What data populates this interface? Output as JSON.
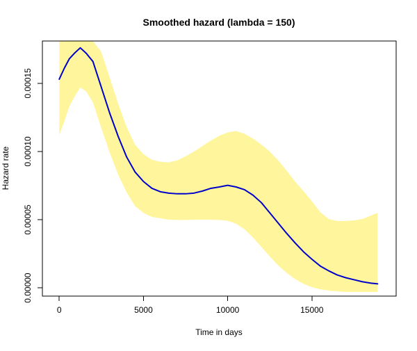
{
  "chart_data": {
    "type": "line",
    "title": "Smoothed hazard (lambda = 150)",
    "xlabel": "Time in days",
    "ylabel": "Hazard rate",
    "xlim": [
      -1000,
      20000
    ],
    "ylim": [
      -6e-06,
      0.000181
    ],
    "x_ticks": [
      0,
      5000,
      10000,
      15000
    ],
    "x_tick_labels": [
      "0",
      "5000",
      "10000",
      "15000"
    ],
    "y_ticks": [
      0,
      5e-05,
      0.0001,
      0.00015
    ],
    "y_tick_labels": [
      "0.00000",
      "0.00005",
      "0.00010",
      "0.00015"
    ],
    "grid": false,
    "legend": "none",
    "colors": {
      "line": "#0000cc",
      "band": "#fff59d",
      "axes": "#000000",
      "background": "#ffffff"
    },
    "series": [
      {
        "x": [
          0,
          300,
          600,
          900,
          1250,
          1600,
          2000,
          2500,
          3000,
          3500,
          4000,
          4500,
          5000,
          5500,
          6000,
          6500,
          7000,
          7500,
          8000,
          8500,
          9000,
          9500,
          10000,
          10500,
          11000,
          11500,
          12000,
          12500,
          13000,
          13500,
          14000,
          14500,
          15000,
          15500,
          16000,
          16500,
          17000,
          17500,
          18000,
          18500,
          18900
        ],
        "y": [
          0.000153,
          0.000161,
          0.000168,
          0.000172,
          0.000176,
          0.000172,
          0.000166,
          0.000147,
          0.000128,
          0.000111,
          9.6e-05,
          8.5e-05,
          7.8e-05,
          7.3e-05,
          7.05e-05,
          6.95e-05,
          6.9e-05,
          6.9e-05,
          6.95e-05,
          7.1e-05,
          7.3e-05,
          7.4e-05,
          7.52e-05,
          7.4e-05,
          7.2e-05,
          6.8e-05,
          6.25e-05,
          5.5e-05,
          4.75e-05,
          4e-05,
          3.3e-05,
          2.65e-05,
          2.1e-05,
          1.6e-05,
          1.25e-05,
          9.5e-06,
          7.5e-06,
          6e-06,
          4.5e-06,
          3.5e-06,
          3e-06
        ]
      }
    ],
    "band": {
      "x": [
        0,
        300,
        600,
        900,
        1250,
        1600,
        2000,
        2500,
        3000,
        3500,
        4000,
        4500,
        5000,
        5500,
        6000,
        6500,
        7000,
        7500,
        8000,
        8500,
        9000,
        9500,
        10000,
        10500,
        11000,
        11500,
        12000,
        12500,
        13000,
        13500,
        14000,
        14500,
        15000,
        15500,
        16000,
        16500,
        17000,
        17500,
        18000,
        18500,
        18900
      ],
      "lower": [
        0.000112,
        0.000122,
        0.000133,
        0.00014,
        0.000147,
        0.000144,
        0.000136,
        0.000117,
        9.9e-05,
        8.3e-05,
        7e-05,
        6e-05,
        5.5e-05,
        5.2e-05,
        5.1e-05,
        5e-05,
        4.98e-05,
        4.98e-05,
        5e-05,
        5e-05,
        5e-05,
        4.98e-05,
        4.92e-05,
        4.7e-05,
        4.3e-05,
        3.7e-05,
        3e-05,
        2.3e-05,
        1.65e-05,
        1.1e-05,
        6.5e-06,
        3e-06,
        5e-07,
        -1e-06,
        -2e-06,
        -2.5e-06,
        -3e-06,
        -3e-06,
        -3e-06,
        -3e-06,
        -3e-06
      ],
      "upper": [
        0.000181,
        0.000181,
        0.000181,
        0.000181,
        0.000181,
        0.000181,
        0.000181,
        0.000173,
        0.000154,
        0.000135,
        0.000118,
        0.000105,
        9.8e-05,
        9.4e-05,
        9.25e-05,
        9.2e-05,
        9.35e-05,
        9.65e-05,
        0.0001,
        0.000104,
        0.000108,
        0.0001115,
        0.000114,
        0.000115,
        0.000113,
        0.0001095,
        0.000105,
        0.0001,
        9.35e-05,
        8.6e-05,
        7.8e-05,
        7.1e-05,
        6.35e-05,
        5.55e-05,
        5.05e-05,
        4.9e-05,
        4.9e-05,
        4.95e-05,
        5.05e-05,
        5.3e-05,
        5.5e-05
      ]
    }
  }
}
